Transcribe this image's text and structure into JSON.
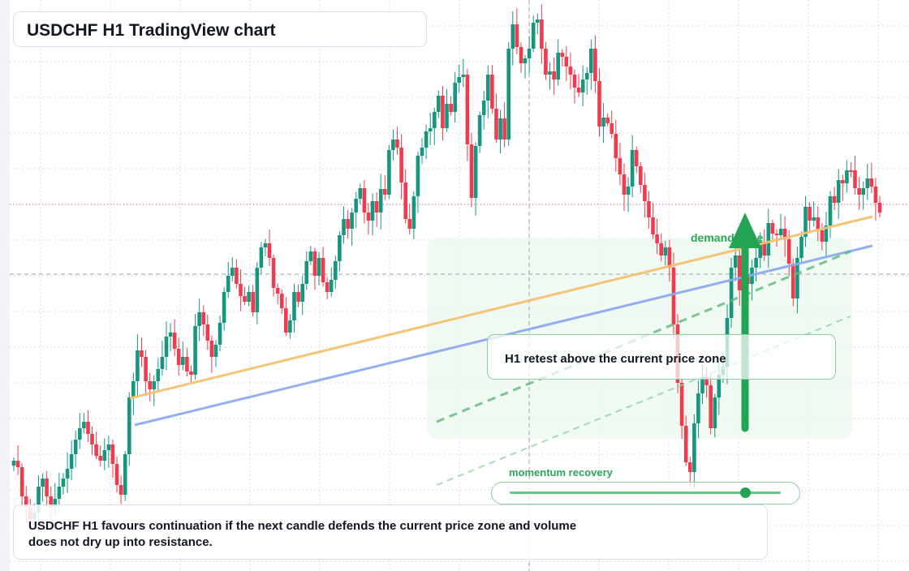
{
  "title": "USDCHF H1 TradingView chart",
  "annotations": {
    "demand_zone_label": "demand zone",
    "retest_text": "H1 retest above the current price zone",
    "momentum_label": "momentum recovery",
    "momentum_level": 0.87,
    "note_text": "USDCHF H1 favours continuation if the next candle defends the current price zone and volume does not dry up into resistance."
  },
  "colors": {
    "up_candle": "#16957f",
    "down_candle": "#ef3b4e",
    "trendline_orange": "#f4c26f",
    "trendline_blue": "#8eabef",
    "accent_green": "#23a455",
    "zone_fill": "#ecf8ef",
    "grid": "#d6dbe3"
  },
  "chart_data": {
    "type": "candlestick",
    "symbol": "USDCHF",
    "timeframe": "H1",
    "price_axis_shown": false,
    "time_axis_shown": false,
    "grid": true,
    "closes": [
      568,
      576,
      612,
      625,
      640,
      632,
      600,
      590,
      612,
      625,
      615,
      600,
      590,
      578,
      560,
      542,
      528,
      520,
      535,
      548,
      562,
      568,
      555,
      548,
      572,
      598,
      610,
      560,
      490,
      470,
      432,
      440,
      470,
      480,
      470,
      455,
      440,
      415,
      410,
      430,
      450,
      440,
      458,
      462,
      402,
      385,
      400,
      420,
      440,
      425,
      398,
      360,
      340,
      330,
      350,
      365,
      372,
      360,
      385,
      330,
      305,
      300,
      318,
      355,
      362,
      380,
      410,
      395,
      360,
      372,
      350,
      322,
      310,
      340,
      318,
      348,
      360,
      345,
      322,
      290,
      270,
      282,
      262,
      245,
      232,
      262,
      272,
      248,
      262,
      233,
      240,
      185,
      172,
      182,
      225,
      270,
      282,
      242,
      192,
      182,
      162,
      158,
      138,
      118,
      158,
      128,
      138,
      102,
      95,
      92,
      178,
      244,
      180,
      142,
      124,
      92,
      134,
      172,
      146,
      172,
      60,
      30,
      58,
      78,
      72,
      60,
      28,
      24,
      60,
      92,
      88,
      98,
      65,
      70,
      82,
      92,
      108,
      114,
      98,
      90,
      60,
      100,
      156,
      145,
      152,
      165,
      195,
      215,
      240,
      230,
      185,
      205,
      228,
      248,
      268,
      289,
      300,
      315,
      305,
      330,
      400,
      472,
      525,
      570,
      582,
      522,
      485,
      465,
      475,
      528,
      490,
      462,
      452,
      392,
      330,
      315,
      358,
      338,
      350,
      330,
      318,
      298,
      315,
      275,
      288,
      290,
      282,
      295,
      325,
      368,
      318,
      292,
      255,
      272,
      268,
      284,
      298,
      278,
      242,
      250,
      222,
      226,
      210,
      210,
      232,
      240,
      232,
      220,
      230,
      250,
      262
    ],
    "notes": "Candles drawn in relative price units (no price scale is printed); lower value = higher price.",
    "trendlines": [
      "orange support",
      "blue support",
      "green dashed channel"
    ]
  }
}
